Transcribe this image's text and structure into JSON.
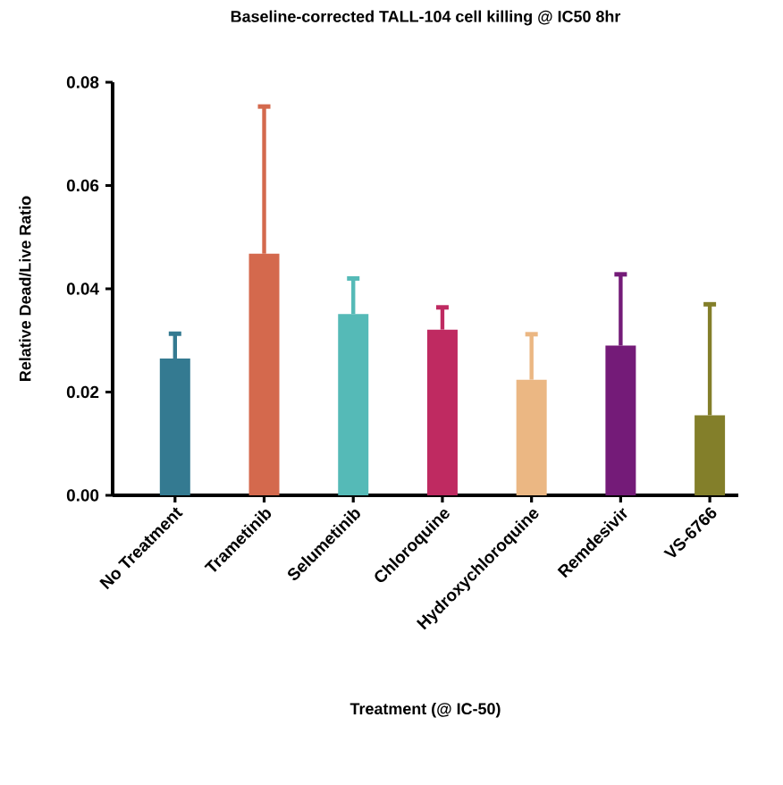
{
  "chart_data": {
    "type": "bar",
    "title": "Baseline-corrected TALL-104 cell killing @ IC50 8hr",
    "xlabel": "Treatment (@ IC-50)",
    "ylabel": "Relative Dead/Live Ratio",
    "categories": [
      "No Treatment",
      "Trametinib",
      "Selumetinib",
      "Chloroquine",
      "Hydroxychloroquine",
      "Remdesivir",
      "VS-6766"
    ],
    "values": [
      0.0265,
      0.0468,
      0.0351,
      0.0321,
      0.0224,
      0.029,
      0.0155
    ],
    "errors": [
      [
        0.0265,
        0.0313
      ],
      [
        0.0468,
        0.0753
      ],
      [
        0.0351,
        0.042
      ],
      [
        0.0321,
        0.0364
      ],
      [
        0.0224,
        0.0312
      ],
      [
        0.029,
        0.0428
      ],
      [
        0.0155,
        0.037
      ]
    ],
    "colors": [
      "#347a91",
      "#d4694d",
      "#55bab7",
      "#bf2a61",
      "#ebb783",
      "#741b78",
      "#837f2a"
    ],
    "ylim": [
      0,
      0.08
    ],
    "yticks": [
      {
        "value": 0,
        "label": "0.00"
      },
      {
        "value": 0.02,
        "label": "0.02"
      },
      {
        "value": 0.04,
        "label": "0.04"
      },
      {
        "value": 0.06,
        "label": "0.06"
      },
      {
        "value": 0.08,
        "label": "0.08"
      }
    ],
    "grid": false
  }
}
